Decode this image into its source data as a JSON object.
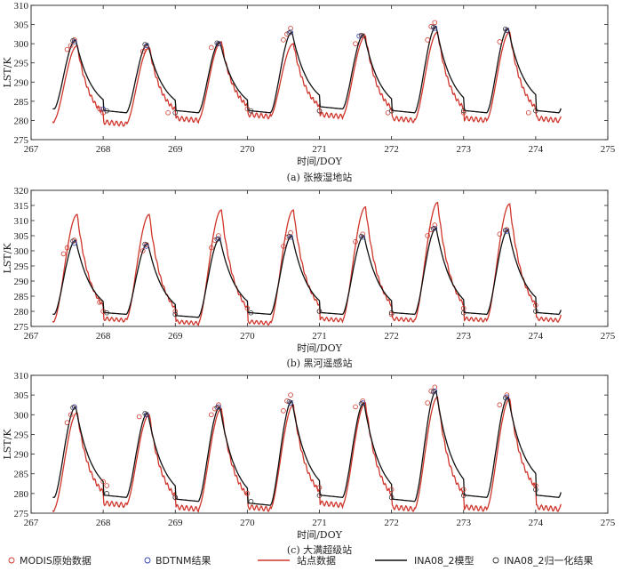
{
  "legend": {
    "items": [
      {
        "label": "MODIS原始数据",
        "kind": "circle",
        "color": "#d0352b"
      },
      {
        "label": "BDTNM结果",
        "kind": "circle",
        "color": "#2f3ea8"
      },
      {
        "label": "站点数据",
        "kind": "line",
        "color": "#d0352b"
      },
      {
        "label": "INA08_2模型",
        "kind": "line",
        "color": "#111111"
      },
      {
        "label": "INA08_2归一化结果",
        "kind": "circle",
        "color": "#333333"
      }
    ]
  },
  "chart_data": [
    {
      "type": "line",
      "caption": "(a) 张掖湿地站",
      "xlabel": "时间/DOY",
      "ylabel": "LST/K",
      "xlim": [
        267,
        275
      ],
      "ylim": [
        275,
        310
      ],
      "xticks": [
        267,
        268,
        269,
        270,
        271,
        272,
        273,
        274,
        275
      ],
      "yticks": [
        275,
        280,
        285,
        290,
        295,
        300,
        305,
        310
      ],
      "grid": false,
      "x_range": [
        267.3,
        274.35
      ],
      "series": [
        {
          "name": "站点数据",
          "min": [
            280,
            279,
            280,
            281,
            281,
            280,
            280,
            280
          ],
          "max": [
            299.5,
            299,
            300.5,
            300,
            302,
            303,
            303
          ]
        },
        {
          "name": "INA08_2模型",
          "min": [
            283,
            282,
            282,
            282,
            283,
            282,
            282,
            283
          ],
          "max": [
            301,
            300,
            300.5,
            303,
            302.5,
            304.5,
            304
          ]
        }
      ],
      "points": [
        {
          "name": "MODIS原始数据",
          "x": [
            267.5,
            267.55,
            267.6,
            267.95,
            268.0,
            268.55,
            268.6,
            268.9,
            269.5,
            269.6,
            270.0,
            270.5,
            270.55,
            270.6,
            271.0,
            271.5,
            271.6,
            271.95,
            272.5,
            272.55,
            272.6,
            273.0,
            273.5,
            273.6,
            273.9
          ],
          "y": [
            298.5,
            299.5,
            301,
            283,
            282,
            298,
            299,
            282,
            299,
            300,
            283,
            301,
            302.5,
            304,
            282.5,
            300,
            302,
            282,
            301,
            304.5,
            305.5,
            282,
            300.5,
            303.5,
            282
          ]
        },
        {
          "name": "BDTNM结果",
          "x": [
            267.6,
            268.0,
            268.6,
            269.6,
            270.6,
            271.55,
            272.6,
            273.6
          ],
          "y": [
            300.5,
            283,
            299.5,
            300,
            303,
            302,
            304,
            303.5
          ]
        },
        {
          "name": "INA08_2归一化结果",
          "x": [
            267.58,
            268.05,
            268.58,
            269.0,
            269.58,
            270.05,
            270.58,
            271.0,
            271.58,
            272.0,
            272.58,
            273.0,
            273.58,
            274.0
          ],
          "y": [
            300.8,
            282.5,
            299.8,
            282,
            300.2,
            282.5,
            302.8,
            282.5,
            302.2,
            282.5,
            304.3,
            282.5,
            303.8,
            282.5
          ]
        }
      ]
    },
    {
      "type": "line",
      "caption": "(b) 黑河遥感站",
      "xlabel": "时间/DOY",
      "ylabel": "LST/K",
      "xlim": [
        267,
        275
      ],
      "ylim": [
        275,
        320
      ],
      "xticks": [
        267,
        268,
        269,
        270,
        271,
        272,
        273,
        274,
        275
      ],
      "yticks": [
        275,
        280,
        285,
        290,
        295,
        300,
        305,
        310,
        315,
        320
      ],
      "grid": false,
      "x_range": [
        267.3,
        274.35
      ],
      "series": [
        {
          "name": "站点数据",
          "min": [
            277,
            277,
            276,
            276,
            277,
            277,
            277,
            277
          ],
          "max": [
            312,
            312,
            313.5,
            313.5,
            314.5,
            316,
            315.5
          ]
        },
        {
          "name": "INA08_2模型",
          "min": [
            279,
            279,
            278,
            279,
            279,
            279,
            279,
            280
          ],
          "max": [
            303.5,
            302.5,
            304,
            305,
            305,
            307.5,
            307
          ]
        }
      ],
      "points": [
        {
          "name": "MODIS原始数据",
          "x": [
            267.45,
            267.5,
            267.6,
            267.95,
            268.0,
            268.55,
            268.6,
            269.0,
            269.5,
            269.55,
            269.6,
            270.0,
            270.5,
            270.55,
            270.6,
            271.0,
            271.5,
            271.6,
            272.0,
            272.5,
            272.55,
            272.6,
            273.0,
            273.5,
            273.6,
            274.0
          ],
          "y": [
            299,
            301,
            303.5,
            283,
            280,
            300,
            302,
            280,
            301,
            303.5,
            305,
            281,
            301.5,
            304.5,
            306,
            280,
            303,
            305.5,
            279,
            305,
            307,
            308.5,
            281,
            305.5,
            307,
            282
          ]
        },
        {
          "name": "BDTNM结果",
          "x": [
            267.6,
            268.6,
            269.6,
            270.6,
            271.6,
            272.6,
            273.6
          ],
          "y": [
            302.5,
            301.5,
            304,
            304.5,
            304.5,
            307.5,
            306.5
          ]
        },
        {
          "name": "INA08_2归一化结果",
          "x": [
            267.58,
            268.05,
            268.58,
            269.0,
            269.58,
            270.05,
            270.58,
            271.0,
            271.58,
            272.0,
            272.58,
            273.0,
            273.58,
            274.0
          ],
          "y": [
            303.2,
            279.5,
            302.2,
            279,
            303.8,
            279.5,
            304.8,
            280,
            304.8,
            279.5,
            307.3,
            279.5,
            306.8,
            280
          ]
        }
      ]
    },
    {
      "type": "line",
      "caption": "(c) 大满超级站",
      "xlabel": "时间/DOY",
      "ylabel": "LST/K",
      "xlim": [
        267,
        275
      ],
      "ylim": [
        275,
        310
      ],
      "xticks": [
        267,
        268,
        269,
        270,
        271,
        272,
        273,
        274,
        275
      ],
      "yticks": [
        275,
        280,
        285,
        290,
        295,
        300,
        305,
        310
      ],
      "grid": false,
      "x_range": [
        267.3,
        274.35
      ],
      "series": [
        {
          "name": "站点数据",
          "min": [
            276,
            277,
            276,
            276,
            277,
            276,
            276,
            278
          ],
          "max": [
            300.5,
            300,
            301.5,
            302.5,
            303,
            304.5,
            304
          ]
        },
        {
          "name": "INA08_2模型",
          "min": [
            279,
            279,
            278,
            277,
            279,
            278,
            279,
            281
          ],
          "max": [
            302,
            300.5,
            302,
            303.5,
            303,
            306,
            304.5
          ]
        }
      ],
      "points": [
        {
          "name": "MODIS原始数据",
          "x": [
            267.5,
            267.55,
            267.6,
            268.0,
            268.05,
            268.5,
            268.6,
            269.0,
            269.5,
            269.55,
            269.6,
            270.0,
            270.5,
            270.55,
            270.6,
            271.0,
            271.5,
            271.6,
            272.0,
            272.5,
            272.55,
            272.6,
            273.0,
            273.5,
            273.6,
            274.0
          ],
          "y": [
            298,
            300,
            302,
            283,
            282,
            299.5,
            300,
            279,
            300,
            301.5,
            302.5,
            280,
            301,
            303.5,
            305,
            281.5,
            302,
            303.5,
            281,
            303,
            306,
            307,
            281,
            302.5,
            305,
            282
          ]
        },
        {
          "name": "BDTNM结果",
          "x": [
            267.6,
            268.6,
            269.6,
            270.6,
            271.6,
            272.6,
            273.6
          ],
          "y": [
            302,
            300,
            302,
            303,
            303,
            306,
            304.5
          ]
        },
        {
          "name": "INA08_2归一化结果",
          "x": [
            267.58,
            268.05,
            268.58,
            269.0,
            269.58,
            270.05,
            270.58,
            271.0,
            271.58,
            272.0,
            272.58,
            273.0,
            273.58,
            274.0
          ],
          "y": [
            301.8,
            280,
            300.3,
            279,
            301.8,
            278,
            303.3,
            279.5,
            302.8,
            279,
            305.8,
            279.5,
            304.3,
            281
          ]
        }
      ]
    }
  ]
}
